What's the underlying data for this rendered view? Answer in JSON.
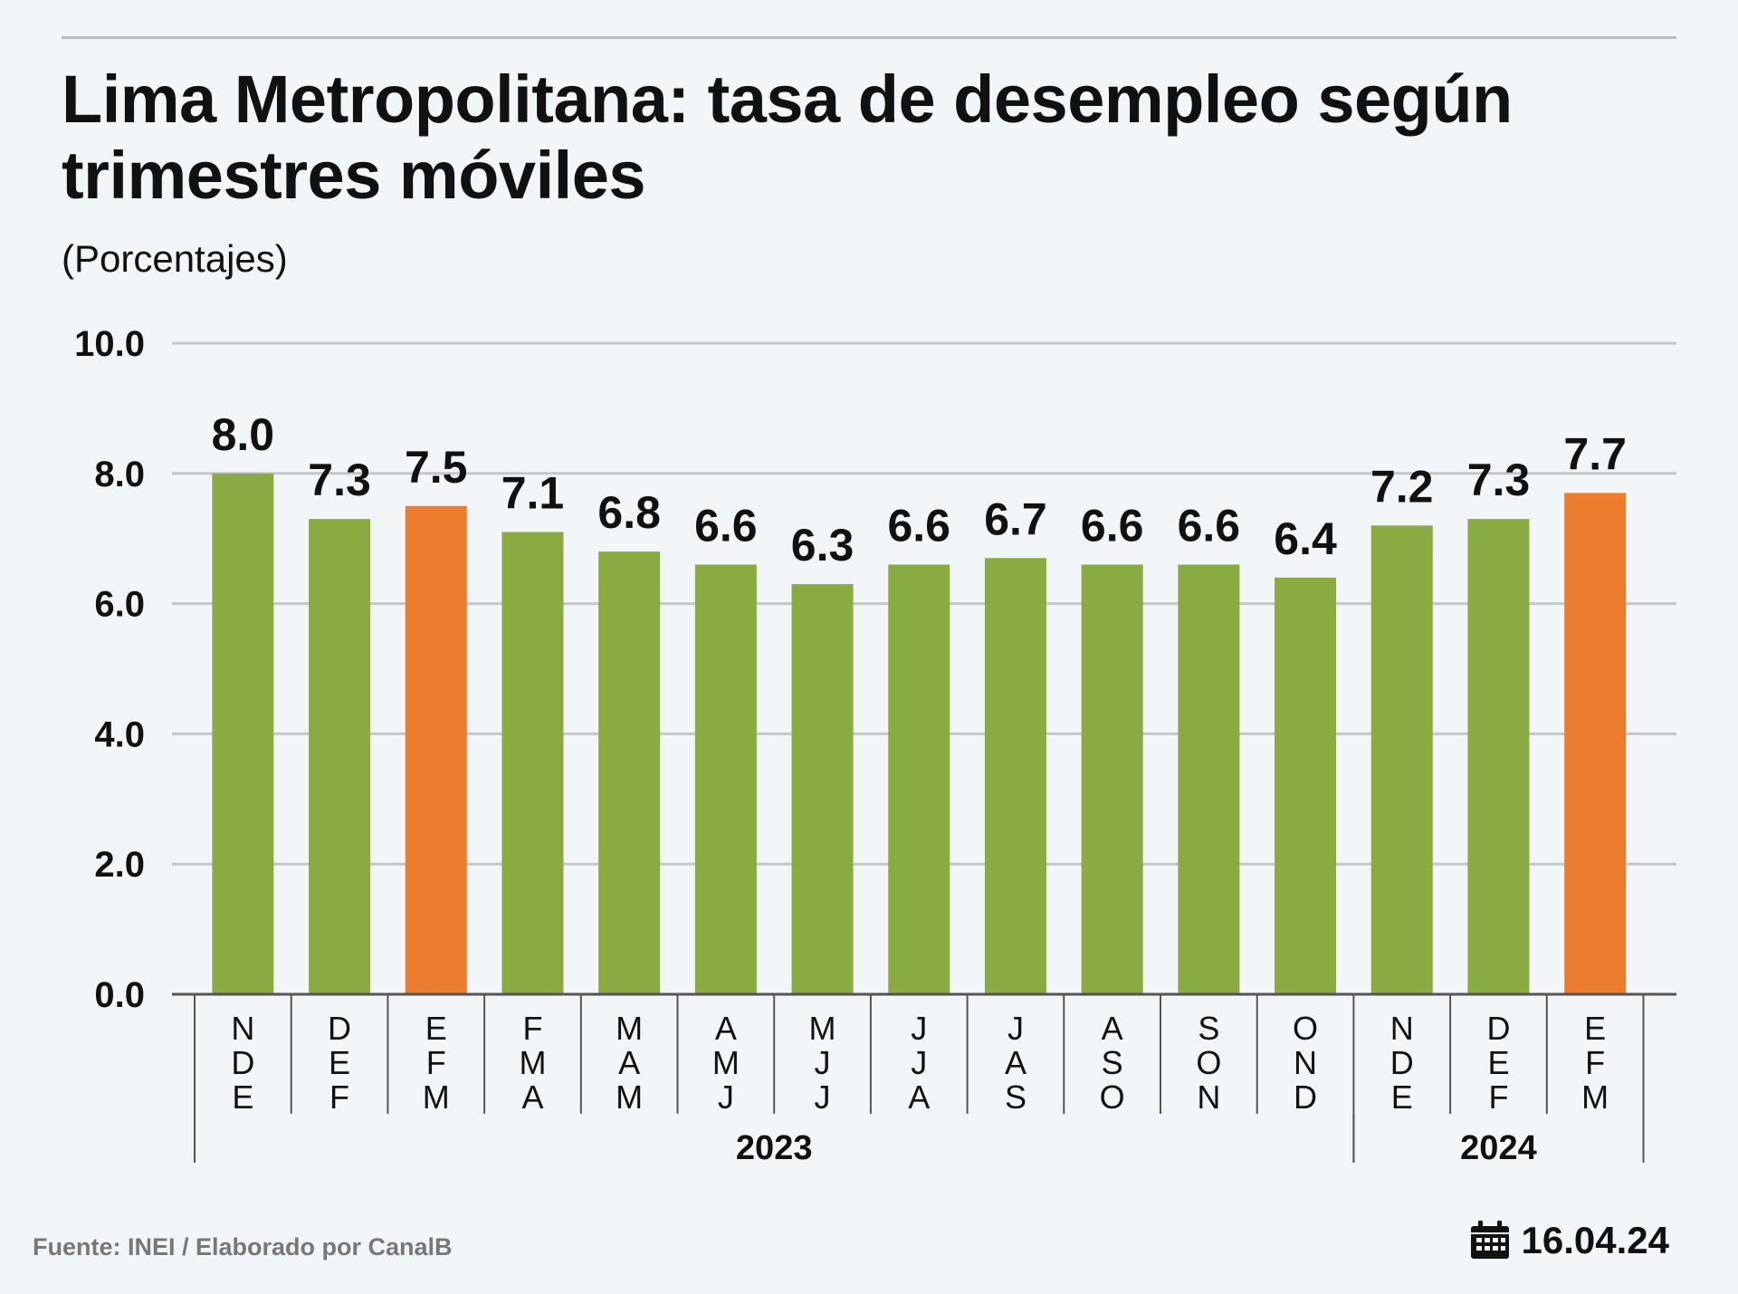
{
  "header": {
    "title": "Lima Metropolitana: tasa de desempleo según trimestres móviles",
    "subtitle": "(Porcentajes)"
  },
  "footer": {
    "source": "Fuente: INEI / Elaborado por CanalB",
    "date": "16.04.24",
    "date_icon": "calendar-icon"
  },
  "colors": {
    "default_bar": "#8aab41",
    "highlight_bar": "#ec7c2e",
    "grid": "#c4c6c9",
    "axis": "#555555"
  },
  "chart_data": {
    "type": "bar",
    "title": "Lima Metropolitana: tasa de desempleo según trimestres móviles",
    "subtitle": "(Porcentajes)",
    "xlabel": "",
    "ylabel": "",
    "ylim": [
      0,
      10
    ],
    "yticks": [
      "0.0",
      "2.0",
      "4.0",
      "6.0",
      "8.0",
      "10.0"
    ],
    "grid": true,
    "categories": [
      [
        "N",
        "D",
        "E"
      ],
      [
        "D",
        "E",
        "F"
      ],
      [
        "E",
        "F",
        "M"
      ],
      [
        "F",
        "M",
        "A"
      ],
      [
        "M",
        "A",
        "M"
      ],
      [
        "A",
        "M",
        "J"
      ],
      [
        "M",
        "J",
        "J"
      ],
      [
        "J",
        "J",
        "A"
      ],
      [
        "J",
        "A",
        "S"
      ],
      [
        "A",
        "S",
        "O"
      ],
      [
        "S",
        "O",
        "N"
      ],
      [
        "O",
        "N",
        "D"
      ],
      [
        "N",
        "D",
        "E"
      ],
      [
        "D",
        "E",
        "F"
      ],
      [
        "E",
        "F",
        "M"
      ]
    ],
    "values": [
      8.0,
      7.3,
      7.5,
      7.1,
      6.8,
      6.6,
      6.3,
      6.6,
      6.7,
      6.6,
      6.6,
      6.4,
      7.2,
      7.3,
      7.7
    ],
    "value_labels": [
      "8.0",
      "7.3",
      "7.5",
      "7.1",
      "6.8",
      "6.6",
      "6.3",
      "6.6",
      "6.7",
      "6.6",
      "6.6",
      "6.4",
      "7.2",
      "7.3",
      "7.7"
    ],
    "highlighted": [
      2,
      14
    ],
    "groups": [
      {
        "label": "2023",
        "start": 0,
        "end": 11
      },
      {
        "label": "2024",
        "start": 12,
        "end": 14
      }
    ]
  }
}
